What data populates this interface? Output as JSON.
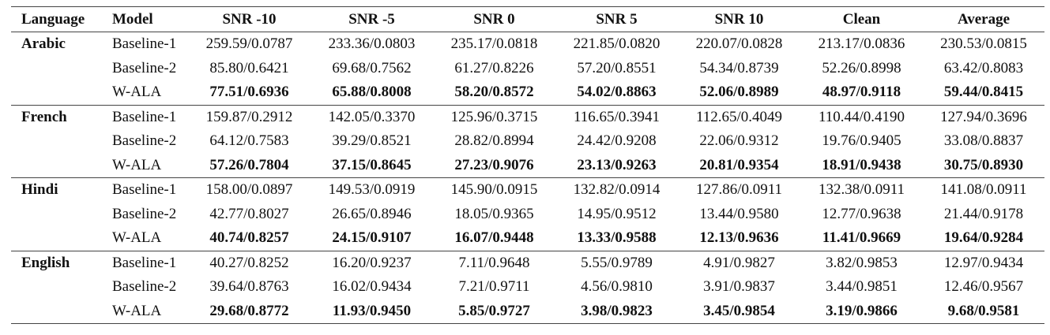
{
  "table": {
    "header": [
      "Language",
      "Model",
      "SNR -10",
      "SNR -5",
      "SNR 0",
      "SNR 5",
      "SNR 10",
      "Clean",
      "Average"
    ],
    "groups": [
      {
        "language": "Arabic",
        "rows": [
          {
            "model": "Baseline-1",
            "cells": [
              "259.59/0.0787",
              "233.36/0.0803",
              "235.17/0.0818",
              "221.85/0.0820",
              "220.07/0.0828",
              "213.17/0.0836",
              "230.53/0.0815"
            ]
          },
          {
            "model": "Baseline-2",
            "cells": [
              "85.80/0.6421",
              "69.68/0.7562",
              "61.27/0.8226",
              "57.20/0.8551",
              "54.34/0.8739",
              "52.26/0.8998",
              "63.42/0.8083"
            ]
          },
          {
            "model": "W-ALA",
            "cells": [
              "77.51/0.6936",
              "65.88/0.8008",
              "58.20/0.8572",
              "54.02/0.8863",
              "52.06/0.8989",
              "48.97/0.9118",
              "59.44/0.8415"
            ]
          }
        ]
      },
      {
        "language": "French",
        "rows": [
          {
            "model": "Baseline-1",
            "cells": [
              "159.87/0.2912",
              "142.05/0.3370",
              "125.96/0.3715",
              "116.65/0.3941",
              "112.65/0.4049",
              "110.44/0.4190",
              "127.94/0.3696"
            ]
          },
          {
            "model": "Baseline-2",
            "cells": [
              "64.12/0.7583",
              "39.29/0.8521",
              "28.82/0.8994",
              "24.42/0.9208",
              "22.06/0.9312",
              "19.76/0.9405",
              "33.08/0.8837"
            ]
          },
          {
            "model": "W-ALA",
            "cells": [
              "57.26/0.7804",
              "37.15/0.8645",
              "27.23/0.9076",
              "23.13/0.9263",
              "20.81/0.9354",
              "18.91/0.9438",
              "30.75/0.8930"
            ]
          }
        ]
      },
      {
        "language": "Hindi",
        "rows": [
          {
            "model": "Baseline-1",
            "cells": [
              "158.00/0.0897",
              "149.53/0.0919",
              "145.90/0.0915",
              "132.82/0.0914",
              "127.86/0.0911",
              "132.38/0.0911",
              "141.08/0.0911"
            ]
          },
          {
            "model": "Baseline-2",
            "cells": [
              "42.77/0.8027",
              "26.65/0.8946",
              "18.05/0.9365",
              "14.95/0.9512",
              "13.44/0.9580",
              "12.77/0.9638",
              "21.44/0.9178"
            ]
          },
          {
            "model": "W-ALA",
            "cells": [
              "40.74/0.8257",
              "24.15/0.9107",
              "16.07/0.9448",
              "13.33/0.9588",
              "12.13/0.9636",
              "11.41/0.9669",
              "19.64/0.9284"
            ]
          }
        ]
      },
      {
        "language": "English",
        "rows": [
          {
            "model": "Baseline-1",
            "cells": [
              "40.27/0.8252",
              "16.20/0.9237",
              "7.11/0.9648",
              "5.55/0.9789",
              "4.91/0.9827",
              "3.82/0.9853",
              "12.97/0.9434"
            ]
          },
          {
            "model": "Baseline-2",
            "cells": [
              "39.64/0.8763",
              "16.02/0.9434",
              "7.21/0.9711",
              "4.56/0.9810",
              "3.91/0.9837",
              "3.44/0.9851",
              "12.46/0.9567"
            ]
          },
          {
            "model": "W-ALA",
            "cells": [
              "29.68/0.8772",
              "11.93/0.9450",
              "5.85/0.9727",
              "3.98/0.9823",
              "3.45/0.9854",
              "3.19/0.9866",
              "9.68/0.9581"
            ]
          }
        ]
      }
    ]
  }
}
